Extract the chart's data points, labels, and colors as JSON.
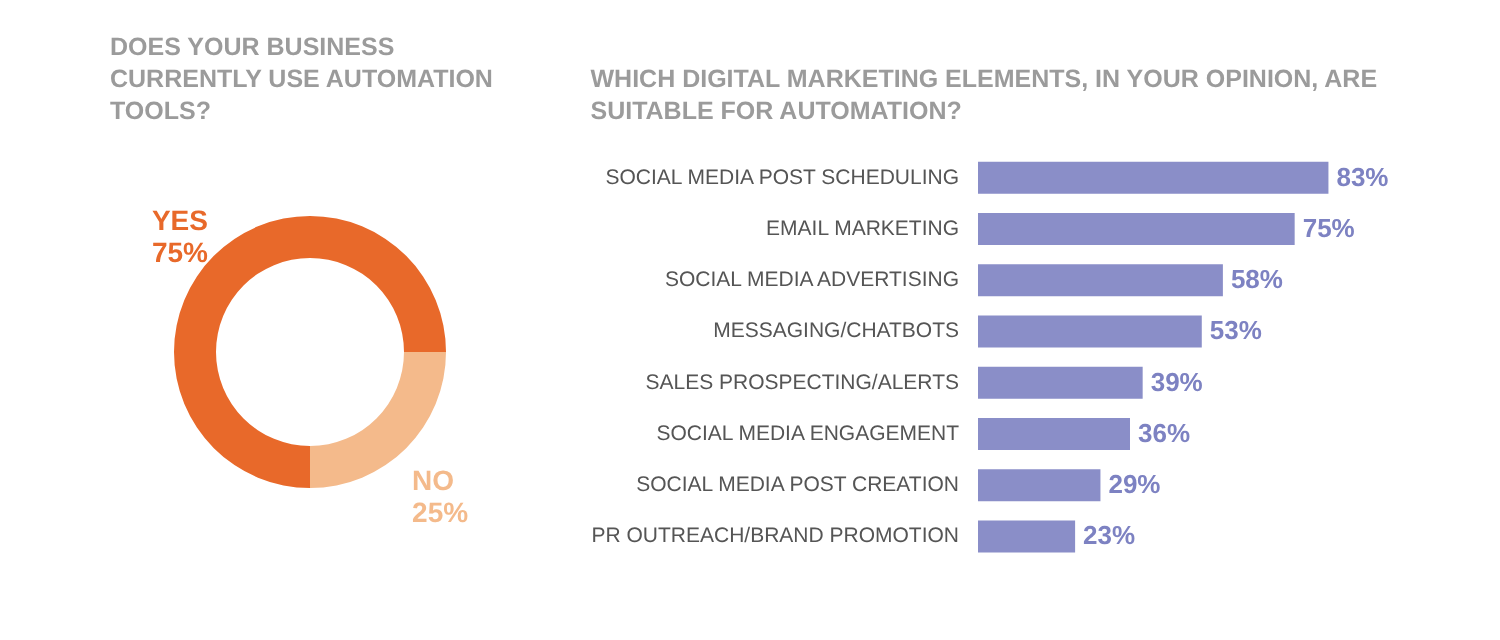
{
  "chart_data": [
    {
      "type": "donut",
      "title": "DOES YOUR BUSINESS CURRENTLY USE AUTOMATION TOOLS?",
      "categories": [
        "YES",
        "NO"
      ],
      "values": [
        75,
        25
      ],
      "colors": [
        "#e8692a",
        "#f4ba8b"
      ],
      "value_labels": [
        "75%",
        "25%"
      ],
      "legend": false
    },
    {
      "type": "bar",
      "orientation": "horizontal",
      "title": "WHICH DIGITAL MARKETING ELEMENTS, IN YOUR OPINION, ARE SUITABLE FOR AUTOMATION?",
      "categories": [
        "SOCIAL MEDIA POST SCHEDULING",
        "EMAIL MARKETING",
        "SOCIAL MEDIA ADVERTISING",
        "MESSAGING/CHATBOTS",
        "SALES PROSPECTING/ALERTS",
        "SOCIAL MEDIA ENGAGEMENT",
        "SOCIAL MEDIA POST CREATION",
        "PR OUTREACH/BRAND PROMOTION"
      ],
      "values": [
        83,
        75,
        58,
        53,
        39,
        36,
        29,
        23
      ],
      "color": "#8a8ec8",
      "value_labels": [
        "83%",
        "75%",
        "58%",
        "53%",
        "39%",
        "36%",
        "29%",
        "23%"
      ]
    }
  ]
}
